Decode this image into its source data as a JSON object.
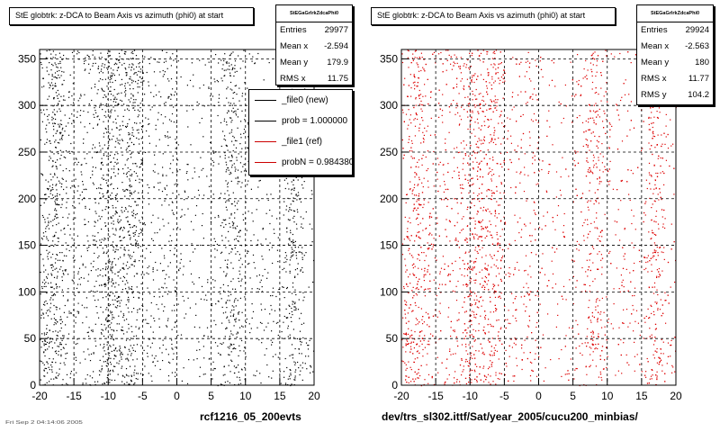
{
  "panels": [
    {
      "title": "StE globtrk: z-DCA to Beam Axis vs azimuth (phi0) at start",
      "stats": {
        "name": "StEGaGrlrkZdcaPhi0",
        "rows": [
          {
            "label": "Entries",
            "value": "29977"
          },
          {
            "label": "Mean x",
            "value": "-2.594"
          },
          {
            "label": "Mean y",
            "value": "179.9"
          },
          {
            "label": "RMS x",
            "value": "11.75"
          }
        ]
      },
      "legend": [
        {
          "label": "_file0 (new)",
          "color": "#000000"
        },
        {
          "label": "prob = 1.000000",
          "color": "#000000"
        },
        {
          "label": "_file1 (ref)",
          "color": "#cc0000"
        },
        {
          "label": "probN = 0.984380",
          "color": "#cc0000"
        }
      ],
      "caption": "rcf1216_05_200evts",
      "footer": "Fri Sep 2 04:14:06 2005"
    },
    {
      "title": "StE globtrk: z-DCA to Beam Axis vs azimuth (phi0) at start",
      "stats": {
        "name": "StEGaGrlrkZdcaPhi0",
        "rows": [
          {
            "label": "Entries",
            "value": "29924"
          },
          {
            "label": "Mean x",
            "value": "-2.563"
          },
          {
            "label": "Mean y",
            "value": "180"
          },
          {
            "label": "RMS x",
            "value": "11.77"
          },
          {
            "label": "RMS y",
            "value": "104.2"
          }
        ]
      },
      "caption": "dev/trs_sl302.ittf/Sat/year_2005/cucu200_minbias/"
    }
  ],
  "chart_data": [
    {
      "type": "scatter",
      "title": "StE globtrk: z-DCA to Beam Axis vs azimuth (phi0) at start",
      "xlim": [
        -20,
        20
      ],
      "ylim": [
        0,
        360
      ],
      "xticks": [
        -20,
        -15,
        -10,
        -5,
        0,
        5,
        10,
        15,
        20
      ],
      "yticks": [
        0,
        50,
        100,
        150,
        200,
        250,
        300,
        350
      ],
      "grid": true,
      "marker_color": "#000000",
      "entries": 29977,
      "mean_x": -2.594,
      "mean_y": 179.9,
      "rms_x": 11.75,
      "dense_x_bands": [
        -18,
        -10,
        -7,
        8,
        17
      ],
      "legend_placement": "top-right"
    },
    {
      "type": "scatter",
      "title": "StE globtrk: z-DCA to Beam Axis vs azimuth (phi0) at start",
      "xlim": [
        -20,
        20
      ],
      "ylim": [
        0,
        360
      ],
      "xticks": [
        -20,
        -15,
        -10,
        -5,
        0,
        5,
        10,
        15,
        20
      ],
      "yticks": [
        0,
        50,
        100,
        150,
        200,
        250,
        300,
        350
      ],
      "grid": true,
      "marker_color": "#dd0000",
      "entries": 29924,
      "mean_x": -2.563,
      "mean_y": 180,
      "rms_x": 11.77,
      "rms_y": 104.2,
      "dense_x_bands": [
        -18,
        -10,
        -7,
        8,
        17
      ]
    }
  ]
}
